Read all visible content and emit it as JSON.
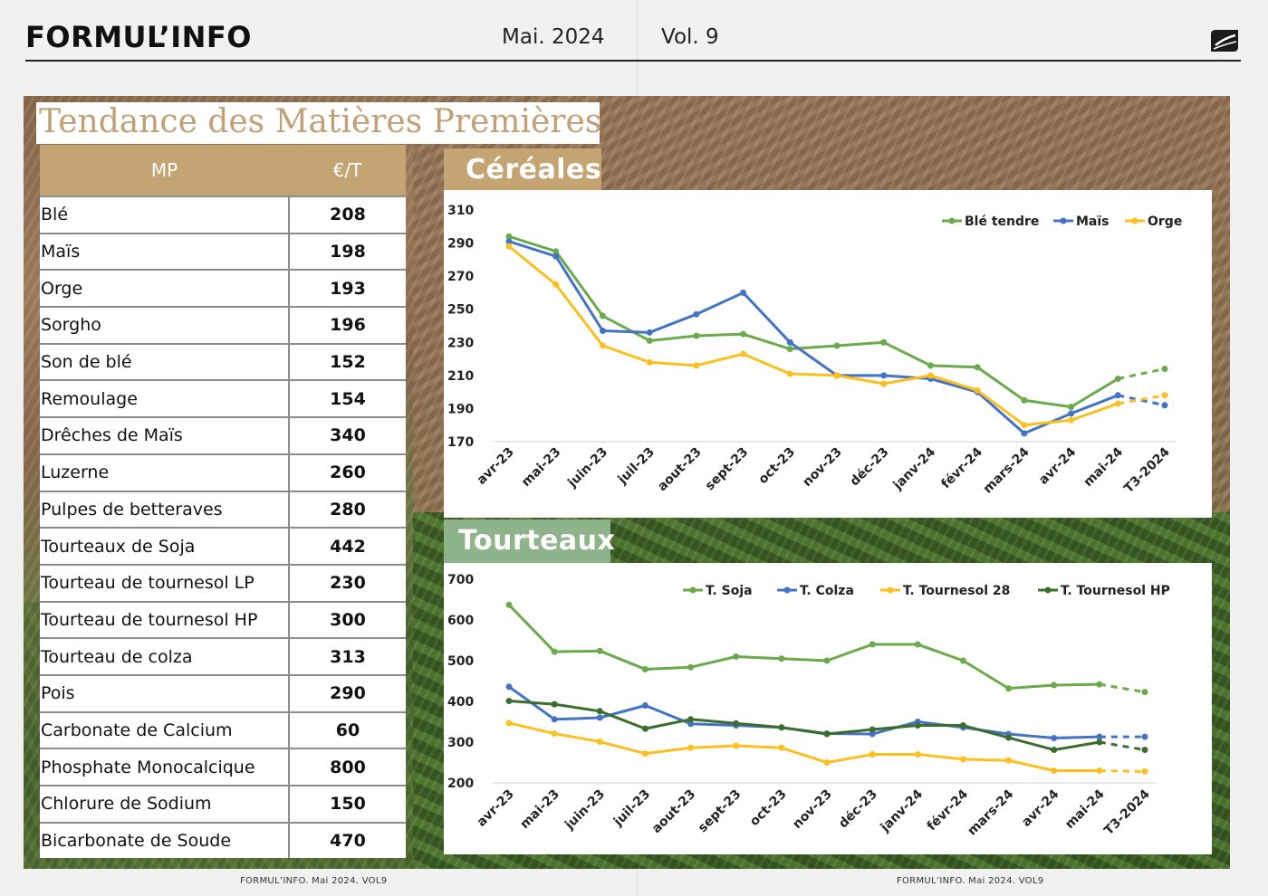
{
  "header": {
    "brand": "FORMUL’INFO",
    "date": "Mai. 2024",
    "volume": "Vol. 9"
  },
  "page_title": "Tendance des Matières Premières",
  "table": {
    "headers": [
      "MP",
      "€/T"
    ],
    "rows": [
      {
        "name": "Blé",
        "value": "208"
      },
      {
        "name": "Maïs",
        "value": "198"
      },
      {
        "name": "Orge",
        "value": "193"
      },
      {
        "name": "Sorgho",
        "value": "196"
      },
      {
        "name": "Son de blé",
        "value": "152"
      },
      {
        "name": "Remoulage",
        "value": "154"
      },
      {
        "name": "Drêches de Maïs",
        "value": "340"
      },
      {
        "name": "Luzerne",
        "value": "260"
      },
      {
        "name": "Pulpes de betteraves",
        "value": "280"
      },
      {
        "name": "Tourteaux de Soja",
        "value": "442"
      },
      {
        "name": "Tourteau de tournesol LP",
        "value": "230"
      },
      {
        "name": "Tourteau de tournesol HP",
        "value": "300"
      },
      {
        "name": "Tourteau de colza",
        "value": "313"
      },
      {
        "name": "Pois",
        "value": "290"
      },
      {
        "name": "Carbonate de Calcium",
        "value": "60"
      },
      {
        "name": "Phosphate Monocalcique",
        "value": "800"
      },
      {
        "name": "Chlorure de Sodium",
        "value": "150"
      },
      {
        "name": "Bicarbonate de Soude",
        "value": "470"
      }
    ]
  },
  "sections": {
    "cereals": "Céréales",
    "oilcakes": "Tourteaux"
  },
  "colors": {
    "green": "#6aaa4a",
    "blue": "#4472c4",
    "yellow": "#fbbf1f",
    "darkgreen": "#3b6e2c",
    "gold": "#c4a473",
    "sage": "#8fb38a"
  },
  "chart_data": [
    {
      "type": "line",
      "title": "Céréales",
      "categories": [
        "avr-23",
        "mai-23",
        "juin-23",
        "juil-23",
        "aout-23",
        "sept-23",
        "oct-23",
        "nov-23",
        "déc-23",
        "janv-24",
        "févr-24",
        "mars-24",
        "avr-24",
        "mai-24",
        "T3-2024"
      ],
      "yticks": [
        170,
        190,
        210,
        230,
        250,
        270,
        290,
        310
      ],
      "ylim": [
        170,
        310
      ],
      "legend_position": "top-right",
      "projected_from_index": 13,
      "series": [
        {
          "name": "Blé tendre",
          "color": "#6aaa4a",
          "values": [
            294,
            285,
            246,
            231,
            234,
            235,
            226,
            228,
            230,
            216,
            215,
            195,
            191,
            208,
            214
          ]
        },
        {
          "name": "Maïs",
          "color": "#4472c4",
          "values": [
            291,
            282,
            237,
            236,
            247,
            260,
            230,
            210,
            210,
            208,
            200,
            175,
            187,
            198,
            192
          ]
        },
        {
          "name": "Orge",
          "color": "#fbbf1f",
          "values": [
            288,
            265,
            228,
            218,
            216,
            223,
            211,
            210,
            205,
            210,
            201,
            180,
            183,
            193,
            198
          ]
        }
      ]
    },
    {
      "type": "line",
      "title": "Tourteaux",
      "categories": [
        "avr-23",
        "mai-23",
        "juin-23",
        "juil-23",
        "aout-23",
        "sept-23",
        "oct-23",
        "nov-23",
        "déc-23",
        "janv-24",
        "févr-24",
        "mars-24",
        "avr-24",
        "mai-24",
        "T3-2024"
      ],
      "yticks": [
        200,
        300,
        400,
        500,
        600,
        700
      ],
      "ylim": [
        200,
        700
      ],
      "legend_position": "top-right",
      "projected_from_index": 13,
      "series": [
        {
          "name": "T. Soja",
          "color": "#6aaa4a",
          "values": [
            637,
            522,
            524,
            479,
            484,
            510,
            505,
            500,
            540,
            540,
            500,
            432,
            440,
            442,
            423
          ]
        },
        {
          "name": "T. Colza",
          "color": "#4472c4",
          "values": [
            436,
            356,
            360,
            390,
            345,
            341,
            336,
            321,
            320,
            350,
            336,
            320,
            310,
            313,
            313
          ]
        },
        {
          "name": "T. Tournesol 28",
          "color": "#fbbf1f",
          "values": [
            347,
            321,
            301,
            272,
            286,
            291,
            286,
            250,
            270,
            270,
            258,
            255,
            230,
            230,
            228
          ]
        },
        {
          "name": "T. Tournesol HP",
          "color": "#3b6e2c",
          "values": [
            401,
            393,
            376,
            333,
            356,
            346,
            336,
            320,
            331,
            341,
            341,
            311,
            281,
            300,
            281
          ]
        }
      ]
    }
  ],
  "footer": {
    "left": "FORMUL’INFO. Mai 2024. VOL9",
    "right": "FORMUL’INFO. Mai 2024. VOL9"
  }
}
